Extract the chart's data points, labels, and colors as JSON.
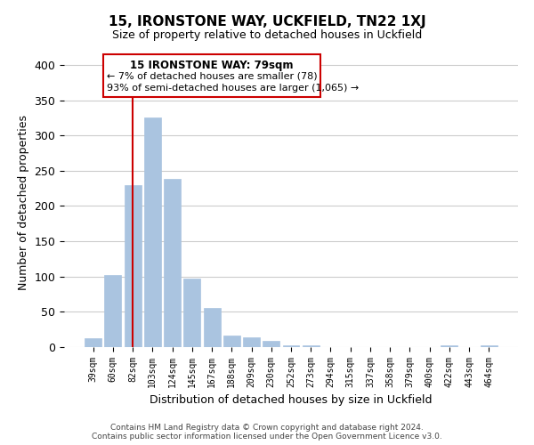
{
  "title": "15, IRONSTONE WAY, UCKFIELD, TN22 1XJ",
  "subtitle": "Size of property relative to detached houses in Uckfield",
  "xlabel": "Distribution of detached houses by size in Uckfield",
  "ylabel": "Number of detached properties",
  "bin_labels": [
    "39sqm",
    "60sqm",
    "82sqm",
    "103sqm",
    "124sqm",
    "145sqm",
    "167sqm",
    "188sqm",
    "209sqm",
    "230sqm",
    "252sqm",
    "273sqm",
    "294sqm",
    "315sqm",
    "337sqm",
    "358sqm",
    "379sqm",
    "400sqm",
    "422sqm",
    "443sqm",
    "464sqm"
  ],
  "bar_heights": [
    13,
    102,
    230,
    325,
    239,
    97,
    55,
    16,
    14,
    9,
    3,
    2,
    0,
    0,
    0,
    0,
    0,
    0,
    3,
    0,
    3
  ],
  "bar_color": "#aac4e0",
  "highlight_color": "#cc0000",
  "highlight_index": 2,
  "ylim": [
    0,
    410
  ],
  "yticks": [
    0,
    50,
    100,
    150,
    200,
    250,
    300,
    350,
    400
  ],
  "annotation_title": "15 IRONSTONE WAY: 79sqm",
  "annotation_line1": "← 7% of detached houses are smaller (78)",
  "annotation_line2": "93% of semi-detached houses are larger (1,065) →",
  "footnote1": "Contains HM Land Registry data © Crown copyright and database right 2024.",
  "footnote2": "Contains public sector information licensed under the Open Government Licence v3.0.",
  "background_color": "#ffffff",
  "grid_color": "#cccccc"
}
